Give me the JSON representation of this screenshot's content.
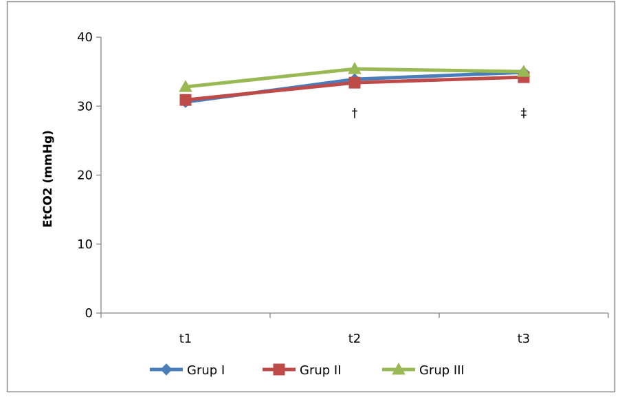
{
  "chart_data": {
    "type": "line",
    "title": "",
    "xlabel": "",
    "ylabel": "EtCO2 (mmHg)",
    "categories": [
      "t1",
      "t2",
      "t3"
    ],
    "ylim": [
      0,
      40
    ],
    "yticks": [
      "0",
      "10",
      "20",
      "30",
      "40"
    ],
    "grid": false,
    "legend_position": "bottom",
    "series": [
      {
        "name": "Grup I",
        "values": [
          30.6,
          33.9,
          34.9
        ],
        "color": "#4a7ebb",
        "marker": "diamond"
      },
      {
        "name": "Grup II",
        "values": [
          30.9,
          33.4,
          34.2
        ],
        "color": "#be4b48",
        "marker": "square"
      },
      {
        "name": "Grup III",
        "values": [
          32.8,
          35.4,
          35.0
        ],
        "color": "#98b954",
        "marker": "triangle"
      }
    ],
    "annotations": [
      {
        "category": "t2",
        "text": "†"
      },
      {
        "category": "t3",
        "text": "‡"
      }
    ]
  }
}
